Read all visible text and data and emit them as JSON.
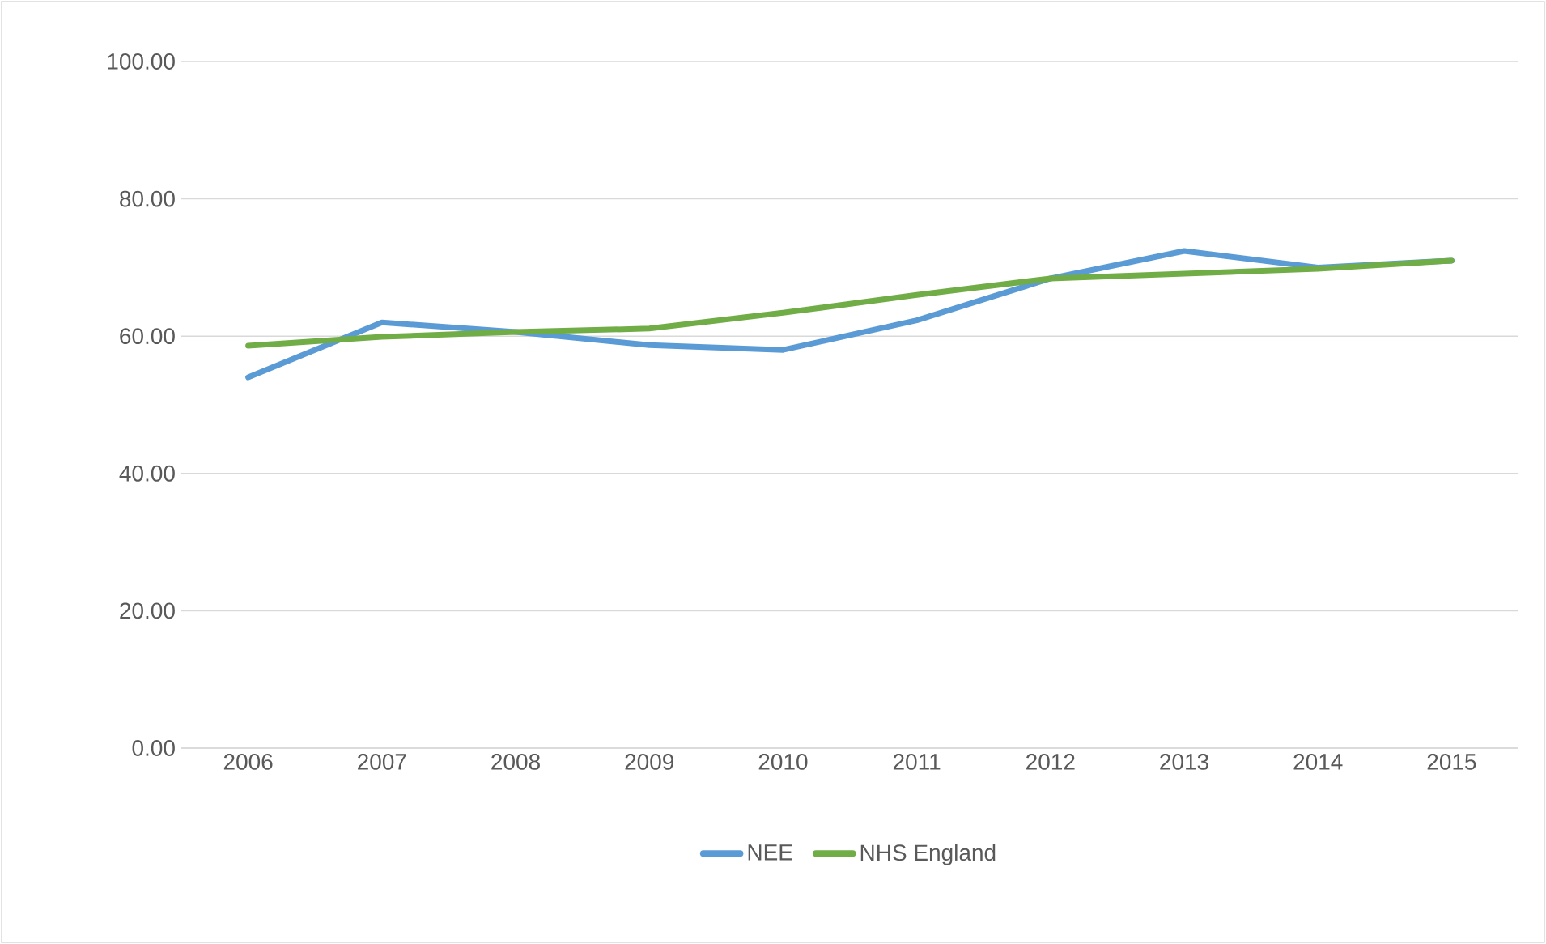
{
  "chart_data": {
    "type": "line",
    "categories": [
      "2006",
      "2007",
      "2008",
      "2009",
      "2010",
      "2011",
      "2012",
      "2013",
      "2014",
      "2015"
    ],
    "series": [
      {
        "name": "NEE",
        "color": "#5b9bd5",
        "values": [
          54.0,
          62.0,
          60.6,
          58.7,
          58.0,
          62.3,
          68.4,
          72.4,
          70.0,
          71.0
        ]
      },
      {
        "name": "NHS England",
        "color": "#70ad47",
        "values": [
          58.6,
          59.9,
          60.6,
          61.1,
          63.4,
          66.0,
          68.4,
          69.1,
          69.8,
          71.0
        ]
      }
    ],
    "ylim": [
      0,
      100
    ],
    "yticks": [
      {
        "value": 0,
        "label": "0.00"
      },
      {
        "value": 20,
        "label": "20.00"
      },
      {
        "value": 40,
        "label": "40.00"
      },
      {
        "value": 60,
        "label": "60.00"
      },
      {
        "value": 80,
        "label": "80.00"
      },
      {
        "value": 100,
        "label": "100.00"
      }
    ],
    "grid": "y",
    "legend": "bottom",
    "marker": "none",
    "line_style": "solid"
  }
}
